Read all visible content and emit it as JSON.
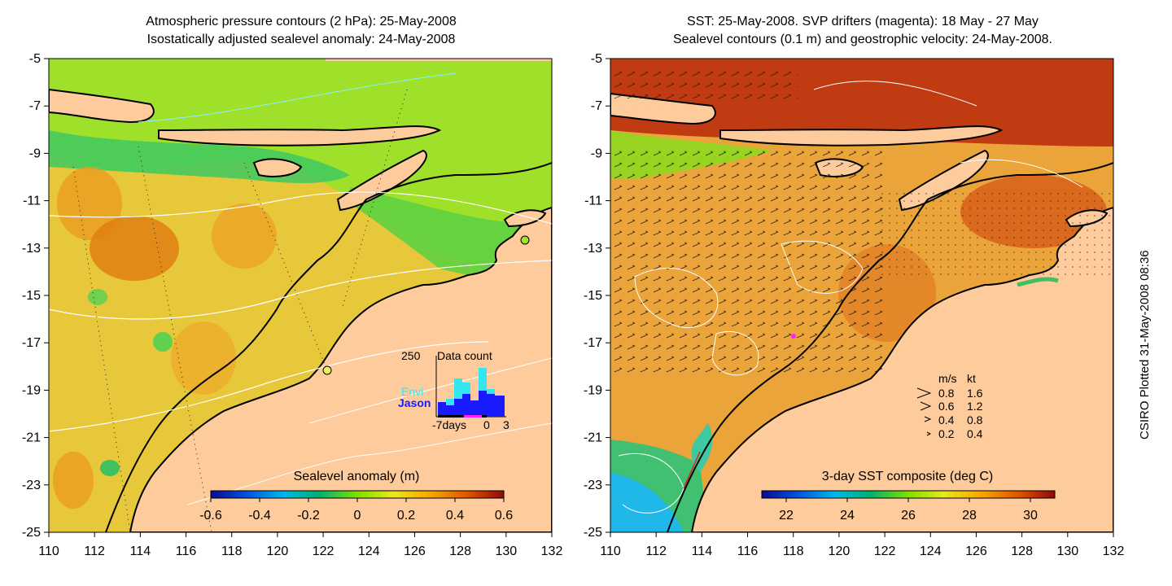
{
  "left_panel": {
    "title_line1": "Atmospheric pressure contours (2 hPa): 25-May-2008",
    "title_line2": "Isostatically adjusted sealevel anomaly: 24-May-2008",
    "colorbar_title": "Sealevel anomaly (m)",
    "colorbar_ticks": [
      "-0.6",
      "-0.4",
      "-0.2",
      "0",
      "0.2",
      "0.4",
      "0.6"
    ],
    "datacount": {
      "max_label": "250",
      "title": "Data count",
      "series1": "Envi",
      "series2": "Jason",
      "xtick_left": "-7days",
      "xtick_mid": "0",
      "xtick_right": "3",
      "envi_color": "#33e6f2",
      "jason_color": "#1a1aff"
    }
  },
  "right_panel": {
    "title_line1": "SST: 25-May-2008. SVP drifters (magenta): 18 May - 27 May",
    "title_line2": "Sealevel contours (0.1 m) and geostrophic velocity: 24-May-2008.",
    "colorbar_title": "3-day SST composite (deg C)",
    "colorbar_ticks": [
      "22",
      "24",
      "26",
      "28",
      "30"
    ],
    "velocity_legend": {
      "header_ms": "m/s",
      "header_kt": "kt",
      "rows": [
        {
          "ms": "0.8",
          "kt": "1.6"
        },
        {
          "ms": "0.6",
          "kt": "1.2"
        },
        {
          "ms": "0.4",
          "kt": "0.8"
        },
        {
          "ms": "0.2",
          "kt": "0.4"
        }
      ]
    }
  },
  "axes": {
    "y_ticks": [
      "-5",
      "-7",
      "-9",
      "-11",
      "-13",
      "-15",
      "-17",
      "-19",
      "-21",
      "-23",
      "-25"
    ],
    "x_ticks": [
      "110",
      "112",
      "114",
      "116",
      "118",
      "120",
      "122",
      "124",
      "126",
      "128",
      "130",
      "132"
    ]
  },
  "credit": "CSIRO Plotted 31-May-2008 08:36",
  "colors": {
    "land": "#fdcb9c",
    "coast": "#000000",
    "contour": "#ffffff"
  }
}
